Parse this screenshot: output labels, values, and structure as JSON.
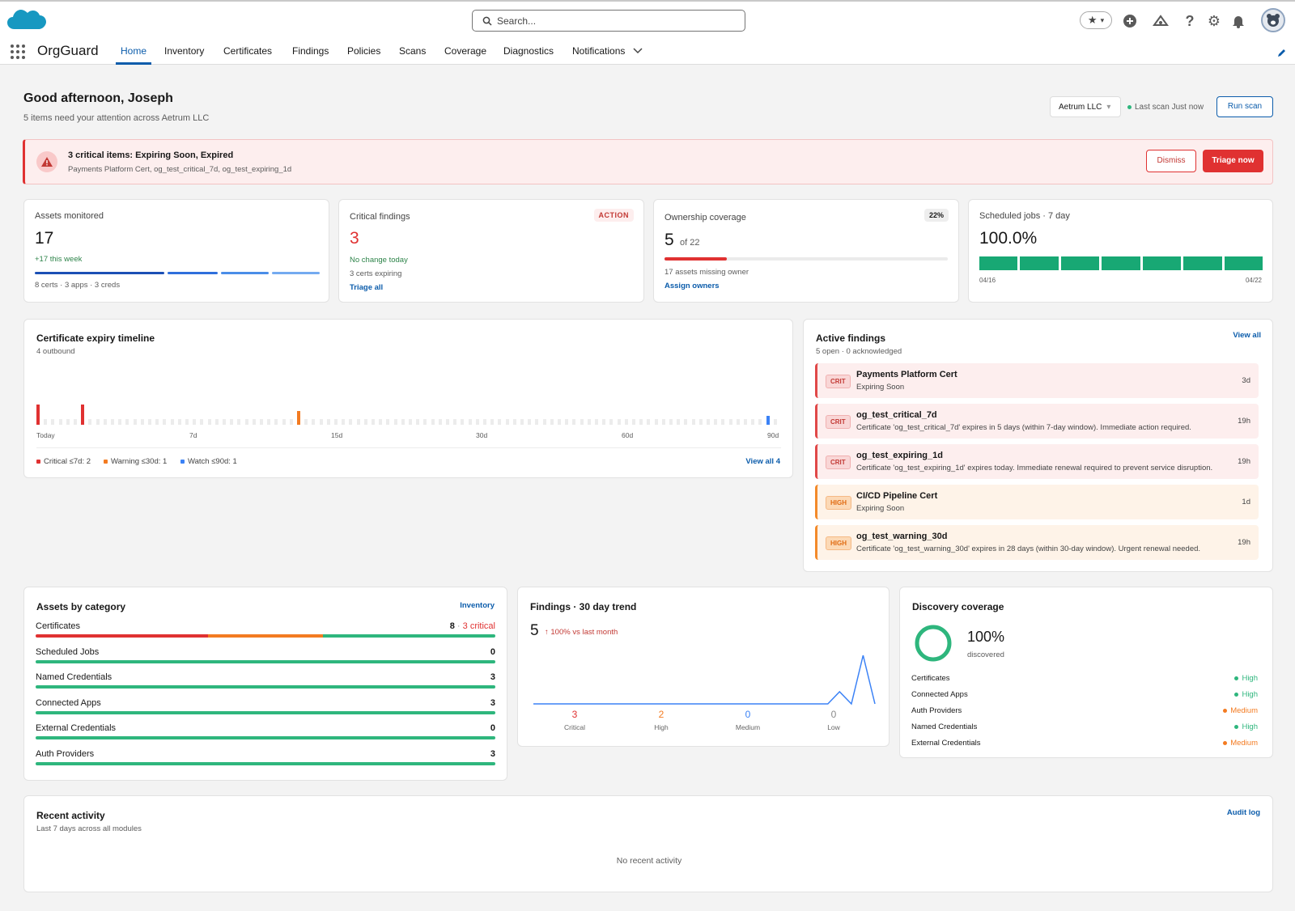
{
  "header": {
    "search_placeholder": "Search...",
    "app_name": "OrgGuard",
    "tabs": [
      "Home",
      "Inventory",
      "Certificates",
      "Findings",
      "Policies",
      "Scans",
      "Coverage",
      "Diagnostics",
      "Notifications"
    ],
    "active_tab": "Home"
  },
  "greeting": {
    "title": "Good afternoon, Joseph",
    "subtitle": "5 items need your attention across Aetrum LLC",
    "org_select": "Aetrum LLC",
    "last_scan": "Last scan Just now",
    "run_scan": "Run scan"
  },
  "alert": {
    "title": "3 critical items: Expiring Soon, Expired",
    "detail": "Payments Platform Cert, og_test_critical_7d, og_test_expiring_1d",
    "dismiss": "Dismiss",
    "triage": "Triage now"
  },
  "kpis": {
    "assets": {
      "label": "Assets monitored",
      "value": "17",
      "delta": "+17 this week",
      "breakdown": "8 certs · 3 apps · 3 creds"
    },
    "critical": {
      "label": "Critical findings",
      "badge": "ACTION",
      "value": "3",
      "delta": "No change today",
      "note": "3 certs expiring",
      "link": "Triage all"
    },
    "ownership": {
      "label": "Ownership coverage",
      "badge": "22%",
      "value": "5",
      "of": "of 22",
      "progress": 0.22,
      "note": "17 assets missing owner",
      "link": "Assign owners"
    },
    "jobs": {
      "label": "Scheduled jobs · 7 day",
      "value": "100.0%",
      "start": "04/16",
      "end": "04/22",
      "days": 7
    }
  },
  "timeline": {
    "title": "Certificate expiry timeline",
    "subtitle": "4 outbound",
    "ticks": [
      "Today",
      "7d",
      "15d",
      "30d",
      "60d",
      "90d"
    ],
    "legend": [
      "Critical ≤7d: 2",
      "Warning ≤30d: 1",
      "Watch ≤90d: 1"
    ],
    "view_all": "View all 4",
    "colors": {
      "critical": "#e03131",
      "warning": "#f37b21",
      "watch": "#3b82f6"
    }
  },
  "findings": {
    "title": "Active findings",
    "subtitle": "5 open · 0 acknowledged",
    "view_all": "View all",
    "items": [
      {
        "sev": "CRIT",
        "title": "Payments Platform Cert",
        "sub": "Expiring Soon",
        "time": "3d"
      },
      {
        "sev": "CRIT",
        "title": "og_test_critical_7d",
        "sub": "Certificate 'og_test_critical_7d' expires in 5 days (within 7-day window). Immediate action required.",
        "time": "19h"
      },
      {
        "sev": "CRIT",
        "title": "og_test_expiring_1d",
        "sub": "Certificate 'og_test_expiring_1d' expires today. Immediate renewal required to prevent service disruption.",
        "time": "19h"
      },
      {
        "sev": "HIGH",
        "title": "CI/CD Pipeline Cert",
        "sub": "Expiring Soon",
        "time": "1d"
      },
      {
        "sev": "HIGH",
        "title": "og_test_warning_30d",
        "sub": "Certificate 'og_test_warning_30d' expires in 28 days (within 30-day window). Urgent renewal needed.",
        "time": "19h"
      }
    ]
  },
  "categories": {
    "title": "Assets by category",
    "link": "Inventory",
    "items": [
      {
        "name": "Certificates",
        "count": "8",
        "critical": "3 critical"
      },
      {
        "name": "Scheduled Jobs",
        "count": "0"
      },
      {
        "name": "Named Credentials",
        "count": "3"
      },
      {
        "name": "Connected Apps",
        "count": "3"
      },
      {
        "name": "External Credentials",
        "count": "0"
      },
      {
        "name": "Auth Providers",
        "count": "3"
      }
    ]
  },
  "trend": {
    "title": "Findings · 30 day trend",
    "value": "5",
    "delta": "↑ 100% vs last month",
    "breakdown": [
      {
        "count": "3",
        "label": "Critical",
        "color": "#e03131"
      },
      {
        "count": "2",
        "label": "High",
        "color": "#f37b21"
      },
      {
        "count": "0",
        "label": "Medium",
        "color": "#3b82f6"
      },
      {
        "count": "0",
        "label": "Low",
        "color": "#8a8a8a"
      }
    ],
    "chart_data": {
      "type": "line",
      "values": [
        0,
        0,
        0,
        0,
        0,
        0,
        0,
        0,
        0,
        0,
        0,
        0,
        0,
        0,
        0,
        0,
        0,
        0,
        0,
        0,
        0,
        0,
        0,
        0,
        0,
        0,
        1,
        0,
        4,
        0
      ]
    }
  },
  "discovery": {
    "title": "Discovery coverage",
    "value": "100%",
    "label": "discovered",
    "items": [
      {
        "name": "Certificates",
        "level": "High"
      },
      {
        "name": "Connected Apps",
        "level": "High"
      },
      {
        "name": "Auth Providers",
        "level": "Medium"
      },
      {
        "name": "Named Credentials",
        "level": "High"
      },
      {
        "name": "External Credentials",
        "level": "Medium"
      }
    ]
  },
  "activity": {
    "title": "Recent activity",
    "subtitle": "Last 7 days across all modules",
    "link": "Audit log",
    "empty": "No recent activity"
  }
}
